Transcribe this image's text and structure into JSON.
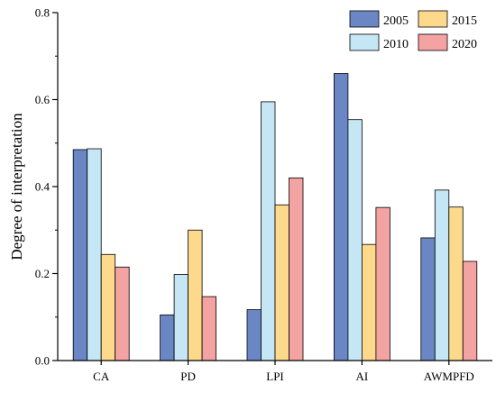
{
  "chart_data": {
    "type": "bar",
    "title": "",
    "xlabel": "",
    "ylabel": "Degree of interpretation",
    "ylim": [
      0,
      0.8
    ],
    "yticks": [
      "0.0",
      "0.2",
      "0.4",
      "0.6",
      "0.8"
    ],
    "categories": [
      "CA",
      "PD",
      "LPI",
      "AI",
      "AWMPFD"
    ],
    "series": [
      {
        "name": "2005",
        "color": "#6b86c4",
        "values": [
          0.485,
          0.105,
          0.117,
          0.66,
          0.282
        ]
      },
      {
        "name": "2010",
        "color": "#c5e6f5",
        "values": [
          0.487,
          0.198,
          0.595,
          0.554,
          0.392
        ]
      },
      {
        "name": "2015",
        "color": "#fcd98b",
        "values": [
          0.244,
          0.3,
          0.358,
          0.267,
          0.353
        ]
      },
      {
        "name": "2020",
        "color": "#f4a3a3",
        "values": [
          0.215,
          0.147,
          0.42,
          0.352,
          0.228
        ]
      }
    ],
    "legend": {
      "placement": "top-right",
      "columns": 2
    },
    "grid": false
  }
}
